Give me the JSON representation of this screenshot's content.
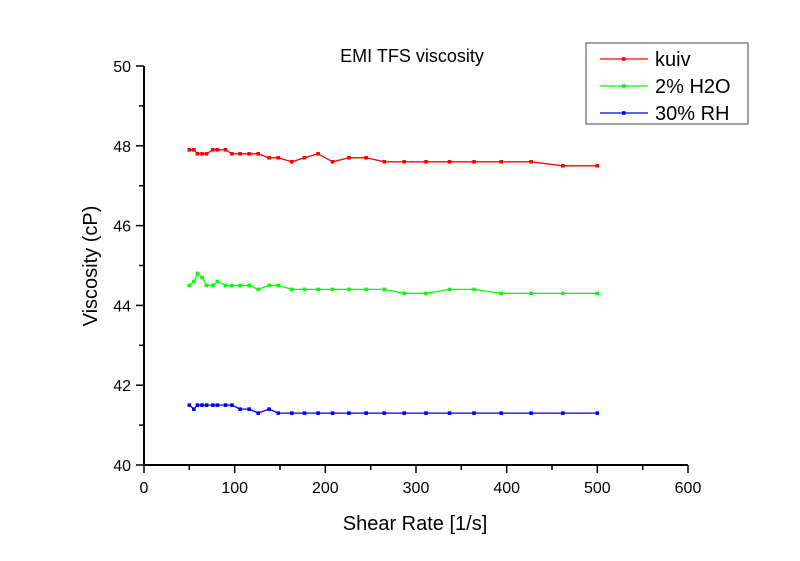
{
  "chart_data": {
    "type": "line",
    "title": "EMI TFS viscosity",
    "xlabel": "Shear Rate [1/s]",
    "ylabel": "Viscosity (cP)",
    "xlim": [
      0,
      600
    ],
    "ylim": [
      40,
      50
    ],
    "xticks": [
      0,
      100,
      200,
      300,
      400,
      500,
      600
    ],
    "yticks": [
      40,
      42,
      44,
      46,
      48,
      50
    ],
    "xtick_labels": [
      "0",
      "100",
      "200",
      "300",
      "400",
      "500",
      "600"
    ],
    "ytick_labels": [
      "40",
      "42",
      "44",
      "46",
      "48",
      "50"
    ],
    "grid": false,
    "legend_position": "top-right",
    "x": [
      50,
      55,
      59,
      64,
      69,
      76,
      81,
      90,
      97,
      106,
      116,
      126,
      138,
      148,
      163,
      177,
      192,
      208,
      226,
      245,
      265,
      287,
      311,
      337,
      364,
      394,
      427,
      462,
      500
    ],
    "series": [
      {
        "name": "kuiv",
        "color": "#ff0000",
        "values": [
          47.9,
          47.9,
          47.8,
          47.8,
          47.8,
          47.9,
          47.9,
          47.9,
          47.8,
          47.8,
          47.8,
          47.8,
          47.7,
          47.7,
          47.6,
          47.7,
          47.8,
          47.6,
          47.7,
          47.7,
          47.6,
          47.6,
          47.6,
          47.6,
          47.6,
          47.6,
          47.6,
          47.5,
          47.5
        ]
      },
      {
        "name": "2% H2O",
        "color": "#00ff00",
        "values": [
          44.5,
          44.6,
          44.8,
          44.7,
          44.5,
          44.5,
          44.6,
          44.5,
          44.5,
          44.5,
          44.5,
          44.4,
          44.5,
          44.5,
          44.4,
          44.4,
          44.4,
          44.4,
          44.4,
          44.4,
          44.4,
          44.3,
          44.3,
          44.4,
          44.4,
          44.3,
          44.3,
          44.3,
          44.3
        ]
      },
      {
        "name": "30% RH",
        "color": "#0000ff",
        "values": [
          41.5,
          41.4,
          41.5,
          41.5,
          41.5,
          41.5,
          41.5,
          41.5,
          41.5,
          41.4,
          41.4,
          41.3,
          41.4,
          41.3,
          41.3,
          41.3,
          41.3,
          41.3,
          41.3,
          41.3,
          41.3,
          41.3,
          41.3,
          41.3,
          41.3,
          41.3,
          41.3,
          41.3,
          41.3
        ]
      }
    ]
  }
}
